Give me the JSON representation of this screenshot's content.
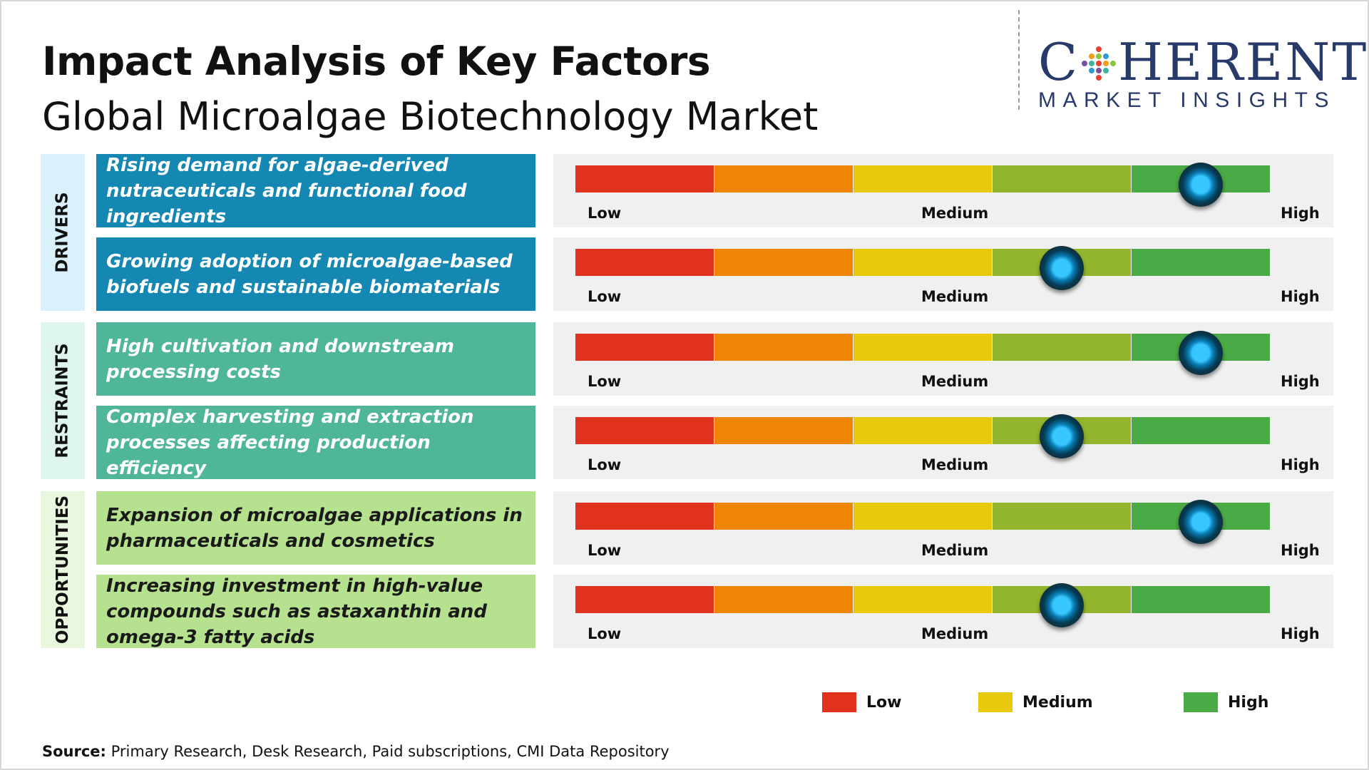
{
  "title": "Impact Analysis of Key Factors",
  "subtitle": "Global Microalgae Biotechnology Market",
  "logo": {
    "main_left": "C",
    "main_right": "HERENT",
    "sub": "MARKET INSIGHTS",
    "color": "#283a6a"
  },
  "scale_labels": [
    "Low",
    "Medium",
    "High"
  ],
  "scale_colors": [
    "#e0321c",
    "#ee8506",
    "#e8c90e",
    "#93b52d",
    "#4aaa45"
  ],
  "categories": [
    {
      "label": "DRIVERS",
      "bg": "#daf1fb",
      "factor_bg": "#1488b3",
      "text_color": "#ffffff"
    },
    {
      "label": "RESTRAINTS",
      "bg": "#def4ee",
      "factor_bg": "#50b69a",
      "text_color": "#ffffff"
    },
    {
      "label": "OPPORTUNITIES",
      "bg": "#e9f7de",
      "factor_bg": "#b6e28f",
      "text_color": "#1a1a1a"
    }
  ],
  "chart_data": {
    "type": "table",
    "scale": [
      "Low",
      "Medium",
      "High"
    ],
    "factors": [
      {
        "category": "DRIVERS",
        "text": "Rising demand for algae-derived nutraceuticals and functional food ingredients",
        "impact": 0.9
      },
      {
        "category": "DRIVERS",
        "text": "Growing adoption of microalgae-based biofuels and sustainable biomaterials",
        "impact": 0.7
      },
      {
        "category": "RESTRAINTS",
        "text": "High cultivation and downstream processing costs",
        "impact": 0.9
      },
      {
        "category": "RESTRAINTS",
        "text": "Complex harvesting and extraction processes affecting production efficiency",
        "impact": 0.7
      },
      {
        "category": "OPPORTUNITIES",
        "text": "Expansion of microalgae applications in pharmaceuticals and cosmetics",
        "impact": 0.9
      },
      {
        "category": "OPPORTUNITIES",
        "text": "Increasing investment in high-value compounds such as astaxanthin and omega-3 fatty acids",
        "impact": 0.7
      }
    ]
  },
  "legend": [
    {
      "label": "Low",
      "color": "#e0321c"
    },
    {
      "label": "Medium",
      "color": "#e8c90e"
    },
    {
      "label": "High",
      "color": "#4aaa45"
    }
  ],
  "source": {
    "label": "Source:",
    "text": " Primary Research, Desk Research, Paid subscriptions, CMI Data Repository"
  }
}
